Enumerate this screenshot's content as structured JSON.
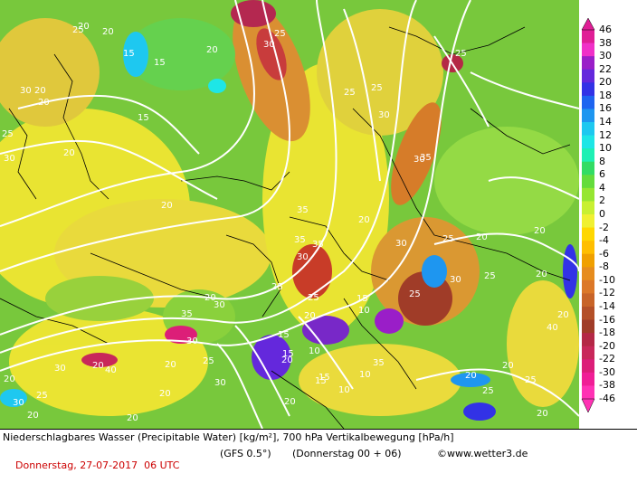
{
  "caption": {
    "line1": "Niederschlagbares Wasser (Precipitable Water) [kg/m²], 700 hPa Vertikalbewegung [hPa/h]",
    "date": "Donnerstag, 27-07-2017  06 UTC",
    "model": "(GFS 0.5°)",
    "run": "(Donnerstag 00 + 06)",
    "copyright": "©www.wetter3.de"
  },
  "legend": {
    "ticks": [
      "46",
      "38",
      "30",
      "22",
      "20",
      "18",
      "16",
      "14",
      "12",
      "10",
      "8",
      "6",
      "4",
      "2",
      "0",
      "-2",
      "-4",
      "-6",
      "-8",
      "-10",
      "-12",
      "-14",
      "-16",
      "-18",
      "-20",
      "-22",
      "-30",
      "-38",
      "-46"
    ],
    "colors": [
      "#e01e96",
      "#f030c8",
      "#9a1ec8",
      "#6428dc",
      "#3232e6",
      "#1e64f0",
      "#1e96f0",
      "#1ec8f0",
      "#1ee6e6",
      "#1ef0b4",
      "#32dc64",
      "#64dc3c",
      "#96e632",
      "#c8f032",
      "#f0f032",
      "#ffd700",
      "#ffbe00",
      "#f0a000",
      "#e68c1e",
      "#dc7828",
      "#c86428",
      "#b45028",
      "#a03c28",
      "#b42846",
      "#c8285a",
      "#dc1e78",
      "#f01e96",
      "#ff32b4"
    ]
  },
  "contour_labels": [
    "20",
    "15",
    "20",
    "30",
    "25",
    "20",
    "30",
    "20",
    "25",
    "15",
    "30",
    "20",
    "20",
    "35",
    "30",
    "30",
    "35",
    "25",
    "25",
    "20",
    "35",
    "35",
    "30",
    "25",
    "25",
    "20",
    "20",
    "30",
    "35",
    "30",
    "15",
    "10",
    "25",
    "15",
    "20",
    "30",
    "25",
    "15",
    "10",
    "20",
    "25",
    "20",
    "40",
    "20",
    "35",
    "30",
    "20",
    "25",
    "20",
    "20",
    "30",
    "25",
    "20",
    "25",
    "10",
    "10",
    "15",
    "20",
    "20",
    "15",
    "25",
    "20",
    "30",
    "40",
    "20",
    "20",
    "30",
    "25",
    "20",
    "20",
    "15",
    "20",
    "25"
  ]
}
